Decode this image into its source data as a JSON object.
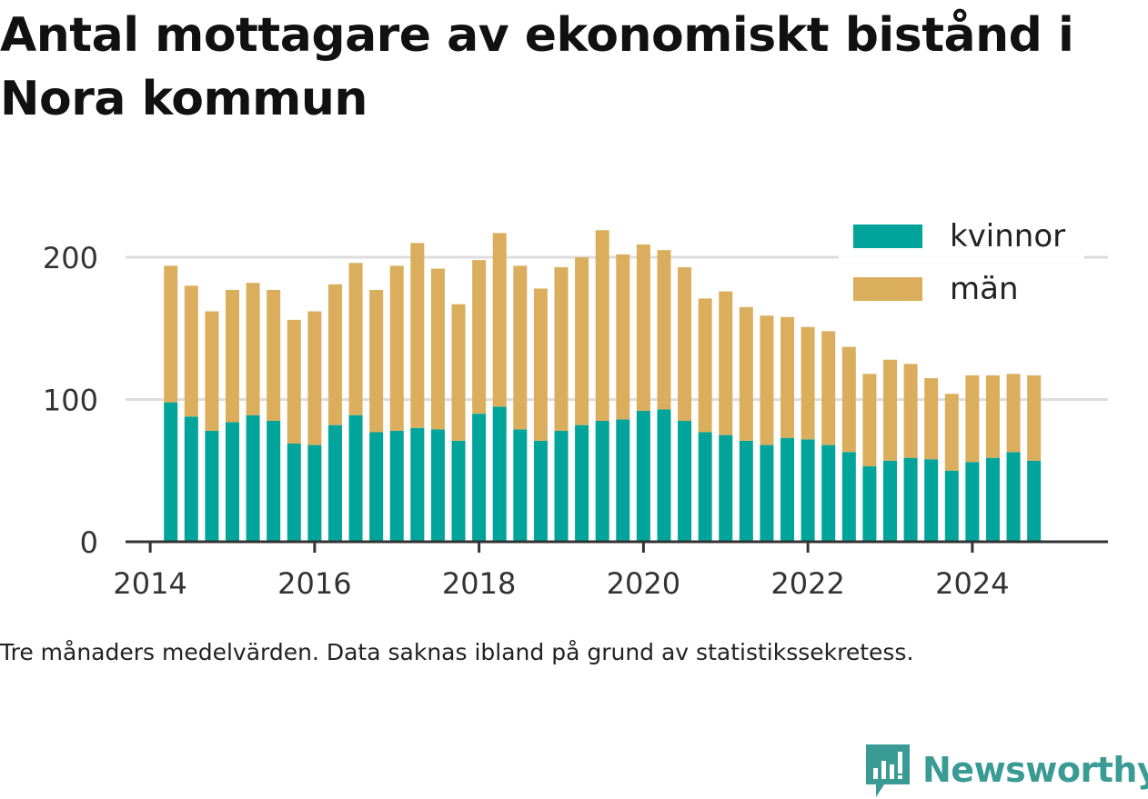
{
  "title": "Antal mottagare av ekonomiskt bistånd i Nora kommun",
  "caption": "Tre månaders medelvärden. Data saknas ibland på grund av statistikssekretess.",
  "brand": {
    "name": "Newsworthy",
    "icon": "newsworthy-chart-bubble-icon",
    "color": "#3a9b94"
  },
  "colors": {
    "kvinnor": "#00a49a",
    "man": "#dbae5e",
    "grid": "#dddddd",
    "axis": "#333333",
    "text": "#333333"
  },
  "chart_data": {
    "type": "bar",
    "stacked": true,
    "title": "Antal mottagare av ekonomiskt bistånd i Nora kommun",
    "xlabel": "",
    "ylabel": "",
    "xlim": [
      2013.7,
      2025.65
    ],
    "ylim": [
      0,
      200
    ],
    "xticks": [
      "2014",
      "2016",
      "2018",
      "2020",
      "2022",
      "2024"
    ],
    "yticks": [
      "0",
      "100",
      "200"
    ],
    "grid": "horizontal",
    "legend_position": "top-right",
    "x": [
      2014.25,
      2014.5,
      2014.75,
      2015.0,
      2015.25,
      2015.5,
      2015.75,
      2016.0,
      2016.25,
      2016.5,
      2016.75,
      2017.0,
      2017.25,
      2017.5,
      2017.75,
      2018.0,
      2018.25,
      2018.5,
      2018.75,
      2019.0,
      2019.25,
      2019.5,
      2019.75,
      2020.0,
      2020.25,
      2020.5,
      2020.75,
      2021.0,
      2021.25,
      2021.5,
      2021.75,
      2022.0,
      2022.25,
      2022.5,
      2022.75,
      2023.0,
      2023.25,
      2023.5,
      2023.75,
      2024.0,
      2024.25,
      2024.5,
      2024.75
    ],
    "series": [
      {
        "name": "kvinnor",
        "color": "#00a49a",
        "values": [
          98,
          88,
          78,
          84,
          89,
          85,
          69,
          68,
          82,
          89,
          77,
          78,
          80,
          79,
          71,
          90,
          95,
          79,
          71,
          78,
          82,
          85,
          86,
          92,
          93,
          85,
          77,
          75,
          71,
          68,
          73,
          72,
          68,
          63,
          53,
          57,
          59,
          58,
          50,
          56,
          59,
          63,
          57
        ]
      },
      {
        "name": "män",
        "color": "#dbae5e",
        "values": [
          96,
          92,
          84,
          93,
          93,
          92,
          87,
          94,
          99,
          107,
          100,
          116,
          130,
          113,
          96,
          108,
          122,
          115,
          107,
          115,
          118,
          134,
          116,
          117,
          112,
          108,
          94,
          101,
          94,
          91,
          85,
          79,
          80,
          74,
          65,
          71,
          66,
          57,
          54,
          61,
          58,
          55,
          60
        ]
      }
    ]
  }
}
